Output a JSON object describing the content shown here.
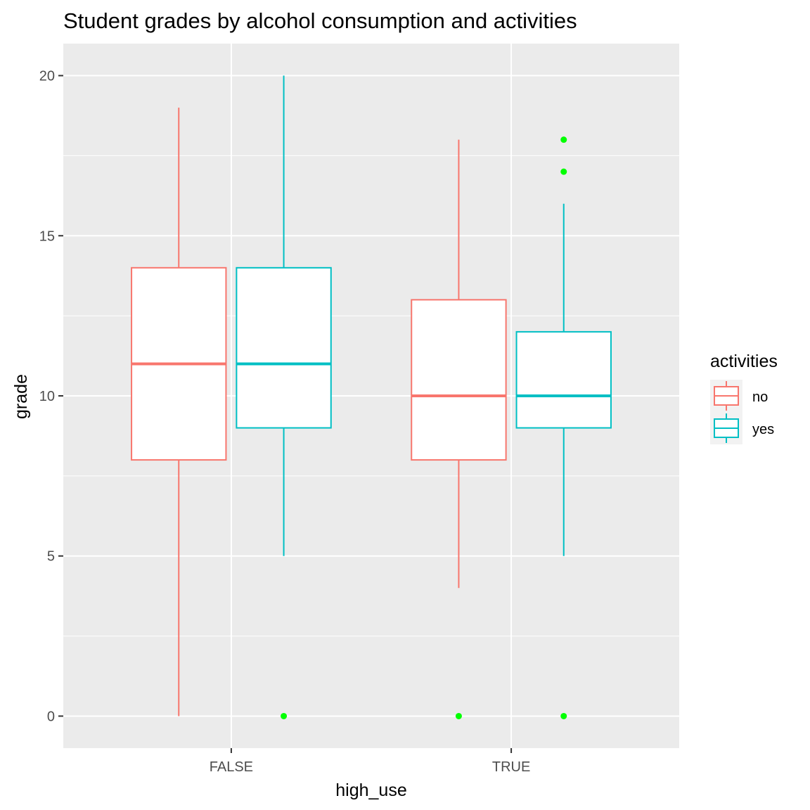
{
  "chart_data": {
    "type": "boxplot",
    "title": "Student grades by alcohol consumption and activities",
    "xlabel": "high_use",
    "ylabel": "grade",
    "categories": [
      "FALSE",
      "TRUE"
    ],
    "ylim": [
      -1,
      21
    ],
    "y_ticks": [
      0,
      5,
      10,
      15,
      20
    ],
    "y_tick_labels": [
      "0",
      "5",
      "10",
      "15",
      "20"
    ],
    "grid": true,
    "legend": {
      "title": "activities",
      "placement": "right",
      "entries": [
        "no",
        "yes"
      ]
    },
    "outlier_color": "#00ff00",
    "series": [
      {
        "name": "no",
        "color": "#f8766d",
        "boxes": [
          {
            "category": "FALSE",
            "min": 0,
            "q1": 8,
            "median": 11,
            "q3": 14,
            "max": 19,
            "outliers": []
          },
          {
            "category": "TRUE",
            "min": 4,
            "q1": 8,
            "median": 10,
            "q3": 13,
            "max": 18,
            "outliers": [
              0
            ]
          }
        ]
      },
      {
        "name": "yes",
        "color": "#00bfc4",
        "boxes": [
          {
            "category": "FALSE",
            "min": 5,
            "q1": 9,
            "median": 11,
            "q3": 14,
            "max": 20,
            "outliers": [
              0
            ]
          },
          {
            "category": "TRUE",
            "min": 5,
            "q1": 9,
            "median": 10,
            "q3": 12,
            "max": 16,
            "outliers": [
              18,
              17,
              0
            ]
          }
        ]
      }
    ]
  }
}
